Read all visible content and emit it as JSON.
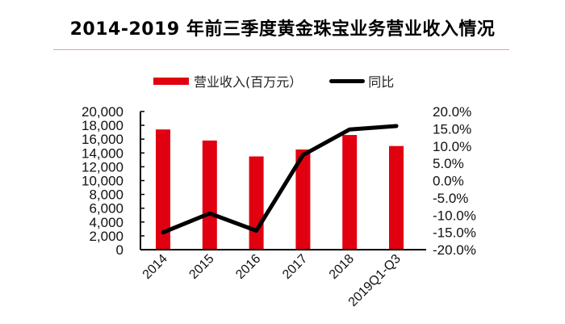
{
  "title": "2014-2019 年前三季度黄金珠宝业务营业收入情况",
  "legend": {
    "bar_label": "营业收入(百万元）",
    "line_label": "同比"
  },
  "colors": {
    "bar": "#e00010",
    "line": "#000000",
    "divider": "#e6a29a"
  },
  "chart_data": {
    "type": "bar",
    "title": "2014-2019 年前三季度黄金珠宝业务营业收入情况",
    "xlabel": "",
    "ylabel": "",
    "categories": [
      "2014",
      "2015",
      "2016",
      "2017",
      "2018",
      "2019Q1-Q3"
    ],
    "series": [
      {
        "name": "营业收入(百万元）",
        "type": "bar",
        "axis": "left",
        "values": [
          17400,
          15800,
          13500,
          14500,
          16600,
          15000
        ]
      },
      {
        "name": "同比",
        "type": "line",
        "axis": "right",
        "unit": "%",
        "values": [
          -15.0,
          -9.5,
          -14.5,
          7.4,
          14.8,
          15.8
        ]
      }
    ],
    "ylim": [
      0,
      20000
    ],
    "y2lim": [
      -20,
      20
    ],
    "left_ticks": [
      "0",
      "2,000",
      "4,000",
      "6,000",
      "8,000",
      "10,000",
      "12,000",
      "14,000",
      "16,000",
      "18,000",
      "20,000"
    ],
    "right_ticks": [
      "-20.0%",
      "-15.0%",
      "-10.0%",
      "-5.0%",
      "0.0%",
      "5.0%",
      "10.0%",
      "15.0%",
      "20.0%"
    ],
    "grid": false,
    "legend_position": "top"
  }
}
